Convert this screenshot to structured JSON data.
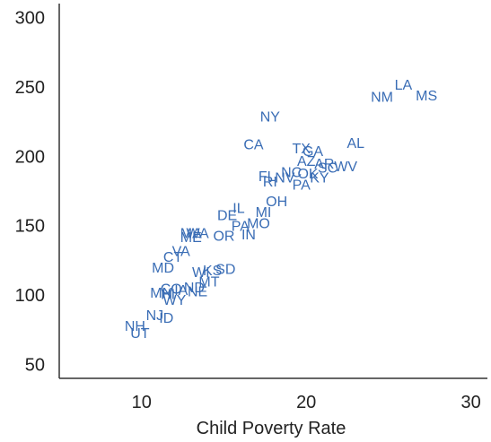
{
  "chart_data": {
    "type": "scatter",
    "title": "",
    "xlabel": "Child Poverty Rate",
    "ylabel": "",
    "xlim": [
      5,
      31
    ],
    "ylim": [
      40,
      310
    ],
    "xticks": [
      10,
      20,
      30
    ],
    "yticks": [
      50,
      100,
      150,
      200,
      250,
      300
    ],
    "grid": false,
    "legend": "none",
    "point_color": "#3a6db5",
    "points": [
      {
        "label": "LA",
        "x": 25.9,
        "y": 252
      },
      {
        "label": "MS",
        "x": 27.3,
        "y": 244
      },
      {
        "label": "NM",
        "x": 24.6,
        "y": 243
      },
      {
        "label": "NY",
        "x": 17.8,
        "y": 229
      },
      {
        "label": "AL",
        "x": 23.0,
        "y": 210
      },
      {
        "label": "CA",
        "x": 16.8,
        "y": 209
      },
      {
        "label": "TX",
        "x": 19.7,
        "y": 206
      },
      {
        "label": "GA",
        "x": 20.4,
        "y": 204
      },
      {
        "label": "AZ",
        "x": 20.0,
        "y": 197
      },
      {
        "label": "AR",
        "x": 21.1,
        "y": 195
      },
      {
        "label": "SC",
        "x": 21.3,
        "y": 192
      },
      {
        "label": "WV",
        "x": 22.4,
        "y": 193
      },
      {
        "label": "NC",
        "x": 19.1,
        "y": 189
      },
      {
        "label": "OK",
        "x": 20.1,
        "y": 188
      },
      {
        "label": "KY",
        "x": 20.8,
        "y": 185
      },
      {
        "label": "FL",
        "x": 17.6,
        "y": 186
      },
      {
        "label": "NV",
        "x": 18.7,
        "y": 185
      },
      {
        "label": "RI",
        "x": 17.8,
        "y": 182
      },
      {
        "label": "PA",
        "x": 19.7,
        "y": 180
      },
      {
        "label": "OH",
        "x": 18.2,
        "y": 168
      },
      {
        "label": "IL",
        "x": 15.9,
        "y": 163
      },
      {
        "label": "MI",
        "x": 17.4,
        "y": 160
      },
      {
        "label": "DE",
        "x": 15.2,
        "y": 158
      },
      {
        "label": "MO",
        "x": 17.1,
        "y": 152
      },
      {
        "label": "PA",
        "x": 16.0,
        "y": 150
      },
      {
        "label": "IN",
        "x": 16.5,
        "y": 144
      },
      {
        "label": "OR",
        "x": 15.0,
        "y": 143
      },
      {
        "label": "MA",
        "x": 13.0,
        "y": 145
      },
      {
        "label": "WA",
        "x": 13.4,
        "y": 145
      },
      {
        "label": "ME",
        "x": 13.0,
        "y": 142
      },
      {
        "label": "VA",
        "x": 12.4,
        "y": 132
      },
      {
        "label": "CT",
        "x": 11.9,
        "y": 128
      },
      {
        "label": "MD",
        "x": 11.3,
        "y": 120
      },
      {
        "label": "SD",
        "x": 15.1,
        "y": 119
      },
      {
        "label": "KS",
        "x": 14.3,
        "y": 118
      },
      {
        "label": "WI",
        "x": 13.6,
        "y": 117
      },
      {
        "label": "MT",
        "x": 14.1,
        "y": 110
      },
      {
        "label": "ND",
        "x": 13.2,
        "y": 106
      },
      {
        "label": "NE",
        "x": 13.4,
        "y": 103
      },
      {
        "label": "CO",
        "x": 11.8,
        "y": 105
      },
      {
        "label": "IA",
        "x": 12.4,
        "y": 104
      },
      {
        "label": "MN",
        "x": 11.2,
        "y": 102
      },
      {
        "label": "HI",
        "x": 11.6,
        "y": 101
      },
      {
        "label": "WY",
        "x": 12.0,
        "y": 97
      },
      {
        "label": "NJ",
        "x": 10.8,
        "y": 86
      },
      {
        "label": "ID",
        "x": 11.5,
        "y": 84
      },
      {
        "label": "NH",
        "x": 9.6,
        "y": 78
      },
      {
        "label": "UT",
        "x": 9.9,
        "y": 73
      }
    ]
  }
}
